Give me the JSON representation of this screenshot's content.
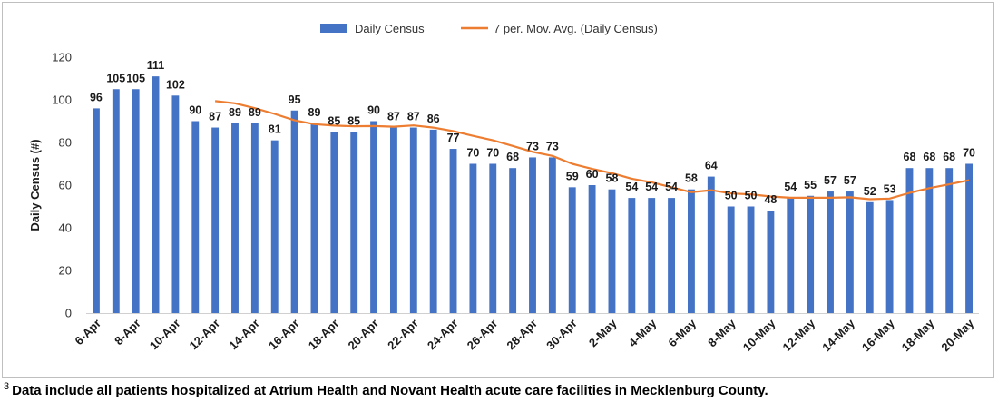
{
  "chart_data": {
    "type": "bar",
    "title": "",
    "xlabel": "",
    "ylabel": "Daily Census (#)",
    "ylim": [
      0,
      120
    ],
    "yticks": [
      0,
      20,
      40,
      60,
      80,
      100,
      120
    ],
    "grid": false,
    "legend_position": "top-center",
    "categories": [
      "6-Apr",
      "7-Apr",
      "8-Apr",
      "9-Apr",
      "10-Apr",
      "11-Apr",
      "12-Apr",
      "13-Apr",
      "14-Apr",
      "15-Apr",
      "16-Apr",
      "17-Apr",
      "18-Apr",
      "19-Apr",
      "20-Apr",
      "21-Apr",
      "22-Apr",
      "23-Apr",
      "24-Apr",
      "25-Apr",
      "26-Apr",
      "27-Apr",
      "28-Apr",
      "29-Apr",
      "30-Apr",
      "1-May",
      "2-May",
      "3-May",
      "4-May",
      "5-May",
      "6-May",
      "7-May",
      "8-May",
      "9-May",
      "10-May",
      "11-May",
      "12-May",
      "13-May",
      "14-May",
      "15-May",
      "16-May",
      "17-May",
      "18-May",
      "19-May",
      "20-May"
    ],
    "tick_labels": [
      "6-Apr",
      "",
      "8-Apr",
      "",
      "10-Apr",
      "",
      "12-Apr",
      "",
      "14-Apr",
      "",
      "16-Apr",
      "",
      "18-Apr",
      "",
      "20-Apr",
      "",
      "22-Apr",
      "",
      "24-Apr",
      "",
      "26-Apr",
      "",
      "28-Apr",
      "",
      "30-Apr",
      "",
      "2-May",
      "",
      "4-May",
      "",
      "6-May",
      "",
      "8-May",
      "",
      "10-May",
      "",
      "12-May",
      "",
      "14-May",
      "",
      "16-May",
      "",
      "18-May",
      "",
      "20-May"
    ],
    "series": [
      {
        "name": "Daily Census",
        "kind": "bar",
        "color": "#4472c4",
        "values": [
          96,
          105,
          105,
          111,
          102,
          90,
          87,
          89,
          89,
          81,
          95,
          89,
          85,
          85,
          90,
          87,
          87,
          86,
          77,
          70,
          70,
          68,
          73,
          73,
          59,
          60,
          58,
          54,
          54,
          54,
          58,
          64,
          50,
          50,
          48,
          54,
          55,
          57,
          57,
          52,
          53,
          68,
          68,
          68,
          70
        ]
      },
      {
        "name": "7 per. Mov. Avg. (Daily Census)",
        "kind": "line",
        "color": "#ed7d31",
        "values": [
          null,
          null,
          null,
          null,
          null,
          null,
          99.4,
          98.4,
          96.1,
          93.4,
          90.4,
          88.6,
          87.9,
          87.6,
          87.7,
          87.4,
          88.0,
          87.0,
          85.3,
          83.1,
          81.0,
          78.4,
          75.6,
          73.7,
          70.0,
          67.6,
          65.6,
          63.0,
          61.3,
          59.0,
          56.7,
          57.6,
          56.1,
          55.7,
          54.7,
          54.1,
          54.1,
          54.1,
          54.3,
          53.4,
          53.7,
          56.4,
          58.6,
          60.4,
          62.3
        ]
      }
    ]
  },
  "footnote": {
    "marker": "3",
    "text": "Data include all patients hospitalized at Atrium Health and Novant Health acute care facilities in Mecklenburg County."
  }
}
